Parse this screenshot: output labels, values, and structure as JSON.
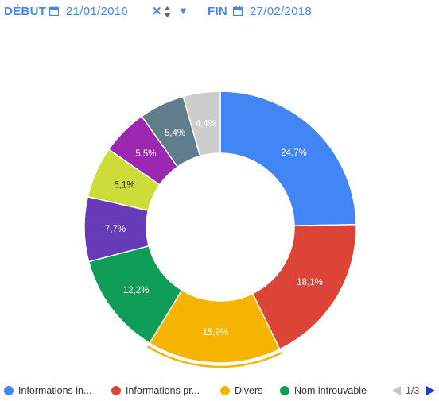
{
  "filters": {
    "start_label": "DÉBUT",
    "start_date": "21/01/2016",
    "end_label": "FIN",
    "end_date": "27/02/2018",
    "clear_symbol": "✕",
    "dropdown_symbol": "▼"
  },
  "chart_data": {
    "type": "pie",
    "donut": true,
    "highlighted_slice": "Divers",
    "slices": [
      {
        "label": "Informations in...",
        "value": 24.7,
        "display": "24,7%",
        "color": "#4285f4"
      },
      {
        "label": "Informations pr...",
        "value": 18.1,
        "display": "18,1%",
        "color": "#db4437"
      },
      {
        "label": "Divers",
        "value": 15.9,
        "display": "15,9%",
        "color": "#f4b400"
      },
      {
        "label": "Nom introuvable",
        "value": 12.2,
        "display": "12,2%",
        "color": "#0f9d58"
      },
      {
        "label": "",
        "value": 7.7,
        "display": "7,7%",
        "color": "#673ab7"
      },
      {
        "label": "",
        "value": 6.1,
        "display": "6,1%",
        "color": "#cddc39"
      },
      {
        "label": "",
        "value": 5.5,
        "display": "5,5%",
        "color": "#9c27b0"
      },
      {
        "label": "",
        "value": 5.4,
        "display": "5,4%",
        "color": "#607d8b"
      },
      {
        "label": "",
        "value": 4.4,
        "display": "4,4%",
        "color": "#cccccc"
      }
    ],
    "legend_position": "bottom"
  },
  "legend": {
    "items": [
      {
        "label": "Informations in...",
        "color": "#4285f4"
      },
      {
        "label": "Informations pr...",
        "color": "#db4437"
      },
      {
        "label": "Divers",
        "color": "#f4b400"
      },
      {
        "label": "Nom introuvable",
        "color": "#0f9d58"
      }
    ],
    "page": "1/3"
  }
}
